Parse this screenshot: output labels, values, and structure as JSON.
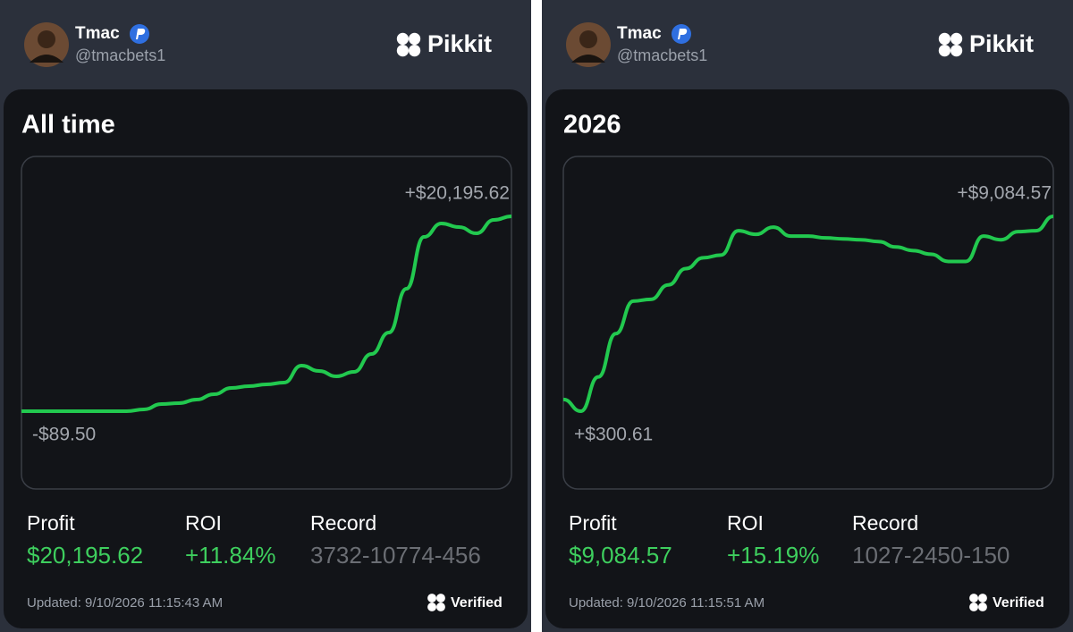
{
  "cards": [
    {
      "user": {
        "name": "Tmac",
        "handle": "@tmacbets1"
      },
      "brand": "Pikkit",
      "period": "All time",
      "chart": {
        "type": "line",
        "color": "#22c94f",
        "max_label": "+$20,195.62",
        "min_label": "-$89.50",
        "values": [
          -89.5,
          -89.5,
          -89.5,
          -89.5,
          -89.5,
          -89.5,
          -89.5,
          97,
          655,
          748,
          1120,
          1678,
          2330,
          2516,
          2702,
          2888,
          4656,
          4098,
          3539,
          4004,
          5866,
          8099,
          12658,
          18055,
          19451,
          19079,
          18428,
          19823,
          20195.62
        ]
      },
      "stats": [
        {
          "label": "Profit",
          "value": "$20,195.62",
          "color": "#3ecf5e"
        },
        {
          "label": "ROI",
          "value": "+11.84%",
          "color": "#3ecf5e"
        },
        {
          "label": "Record",
          "value": "3732-10774-456",
          "color": "#6b6e74"
        }
      ],
      "updated": "Updated: 9/10/2026 11:15:43 AM",
      "verified": "Verified"
    },
    {
      "user": {
        "name": "Tmac",
        "handle": "@tmacbets1"
      },
      "brand": "Pikkit",
      "period": "2026",
      "chart": {
        "type": "line",
        "color": "#22c94f",
        "max_label": "+$9,084.57",
        "min_label": "+$300.61",
        "values": [
          829,
          300.61,
          1846,
          3798,
          5262,
          5344,
          5994,
          6726,
          7215,
          7336,
          8435,
          8272,
          8597,
          8191,
          8191,
          8110,
          8069,
          8028,
          7947,
          7703,
          7540,
          7377,
          7052,
          7052,
          8191,
          8028,
          8394,
          8435,
          9084.57
        ]
      },
      "stats": [
        {
          "label": "Profit",
          "value": "$9,084.57",
          "color": "#3ecf5e"
        },
        {
          "label": "ROI",
          "value": "+15.19%",
          "color": "#3ecf5e"
        },
        {
          "label": "Record",
          "value": "1027-2450-150",
          "color": "#6b6e74"
        }
      ],
      "updated": "Updated: 9/10/2026 11:15:51 AM",
      "verified": "Verified"
    }
  ]
}
